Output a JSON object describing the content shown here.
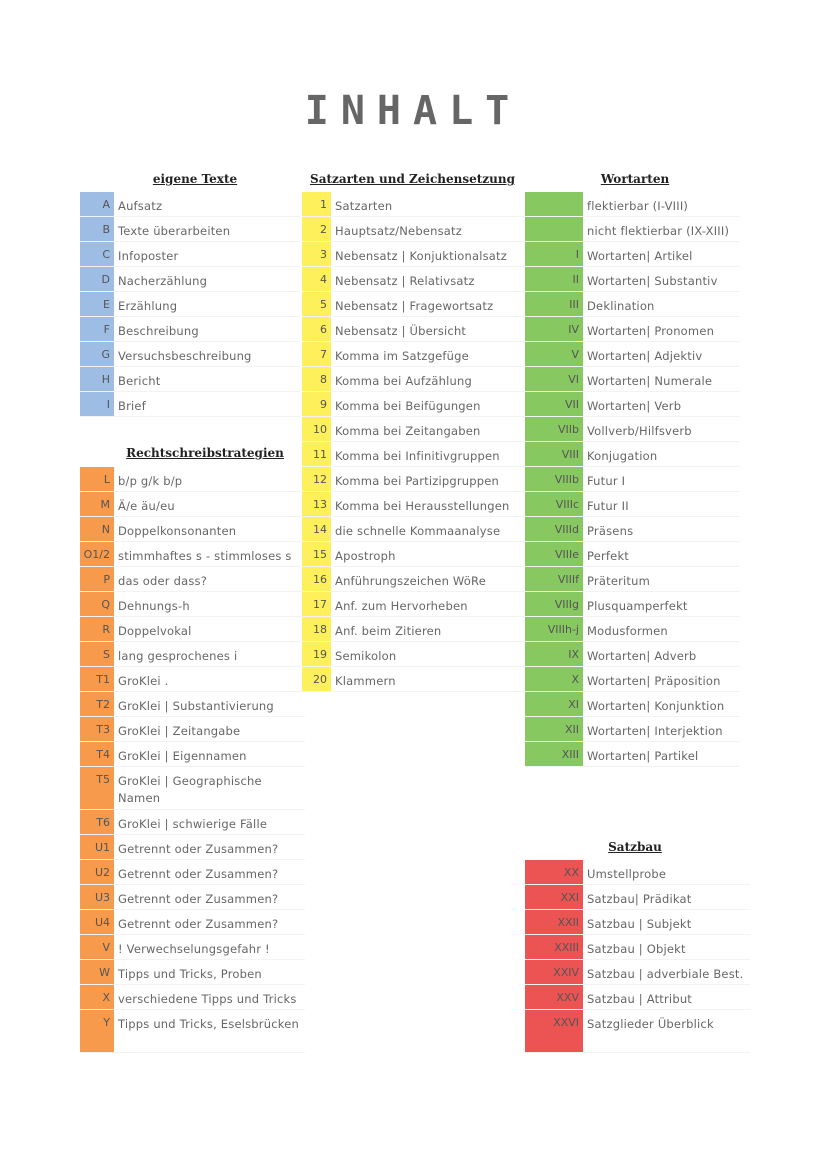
{
  "title": "INHALT",
  "sections": {
    "eigene_texte": {
      "heading": "eigene Texte",
      "items": [
        {
          "code": "A",
          "label": "Aufsatz"
        },
        {
          "code": "B",
          "label": "Texte überarbeiten"
        },
        {
          "code": "C",
          "label": "Infoposter"
        },
        {
          "code": "D",
          "label": "Nacherzählung"
        },
        {
          "code": "E",
          "label": "Erzählung"
        },
        {
          "code": "F",
          "label": "Beschreibung"
        },
        {
          "code": "G",
          "label": "Versuchsbeschreibung"
        },
        {
          "code": "H",
          "label": "Bericht"
        },
        {
          "code": "I",
          "label": "Brief"
        }
      ]
    },
    "rechtschreib": {
      "heading": "Rechtschreibstrategien",
      "items": [
        {
          "code": "L",
          "label": "b/p  g/k  b/p"
        },
        {
          "code": "M",
          "label": "Ä/e   äu/eu"
        },
        {
          "code": "N",
          "label": "Doppelkonsonanten"
        },
        {
          "code": "O1/2",
          "label": "stimmhaftes s - stimmloses s"
        },
        {
          "code": "P",
          "label": "das oder dass?"
        },
        {
          "code": "Q",
          "label": "Dehnungs-h"
        },
        {
          "code": "R",
          "label": "Doppelvokal"
        },
        {
          "code": "S",
          "label": "lang gesprochenes i"
        },
        {
          "code": "T1",
          "label": "GroKlei ."
        },
        {
          "code": "T2",
          "label": "GroKlei | Substantivierung"
        },
        {
          "code": "T3",
          "label": "GroKlei | Zeitangabe"
        },
        {
          "code": "T4",
          "label": "GroKlei | Eigennamen"
        },
        {
          "code": "T5",
          "label": "GroKlei | Geographische Namen"
        },
        {
          "code": "T6",
          "label": "GroKlei | schwierige Fälle"
        },
        {
          "code": "U1",
          "label": "Getrennt oder Zusammen?"
        },
        {
          "code": "U2",
          "label": "Getrennt oder Zusammen?"
        },
        {
          "code": "U3",
          "label": "Getrennt oder Zusammen?"
        },
        {
          "code": "U4",
          "label": "Getrennt oder Zusammen?"
        },
        {
          "code": "V",
          "label": "! Verwechselungsgefahr !"
        },
        {
          "code": "W",
          "label": "Tipps und Tricks, Proben"
        },
        {
          "code": "X",
          "label": "verschiedene Tipps und Tricks"
        },
        {
          "code": "Y",
          "label": "Tipps und Tricks, Eselsbrücken"
        }
      ]
    },
    "satzarten": {
      "heading": "Satzarten und Zeichensetzung",
      "items": [
        {
          "code": "1",
          "label": "Satzarten"
        },
        {
          "code": "2",
          "label": "Hauptsatz/Nebensatz"
        },
        {
          "code": "3",
          "label": "Nebensatz | Konjuktionalsatz"
        },
        {
          "code": "4",
          "label": "Nebensatz | Relativsatz"
        },
        {
          "code": "5",
          "label": "Nebensatz | Fragewortsatz"
        },
        {
          "code": "6",
          "label": "Nebensatz |  Übersicht"
        },
        {
          "code": "7",
          "label": "Komma im Satzgefüge"
        },
        {
          "code": "8",
          "label": "Komma bei Aufzählung"
        },
        {
          "code": "9",
          "label": "Komma bei Beifügungen"
        },
        {
          "code": "10",
          "label": "Komma bei Zeitangaben"
        },
        {
          "code": "11",
          "label": "Komma bei Infinitivgruppen"
        },
        {
          "code": "12",
          "label": "Komma bei Partizipgruppen"
        },
        {
          "code": "13",
          "label": "Komma bei Herausstellungen"
        },
        {
          "code": "14",
          "label": "die schnelle Kommaanalyse"
        },
        {
          "code": "15",
          "label": "Apostroph"
        },
        {
          "code": "16",
          "label": "Anführungszeichen WöRe"
        },
        {
          "code": "17",
          "label": "Anf. zum Hervorheben"
        },
        {
          "code": "18",
          "label": "Anf. beim Zitieren"
        },
        {
          "code": "19",
          "label": "Semikolon"
        },
        {
          "code": "20",
          "label": "Klammern"
        }
      ]
    },
    "wortarten": {
      "heading": "Wortarten",
      "items": [
        {
          "code": "",
          "label": "flektierbar (I-VIII)"
        },
        {
          "code": "",
          "label": "nicht flektierbar (IX-XIII)"
        },
        {
          "code": "I",
          "label": "Wortarten| Artikel"
        },
        {
          "code": "II",
          "label": "Wortarten| Substantiv"
        },
        {
          "code": "III",
          "label": "Deklination"
        },
        {
          "code": "IV",
          "label": "Wortarten| Pronomen"
        },
        {
          "code": "V",
          "label": "Wortarten| Adjektiv"
        },
        {
          "code": "VI",
          "label": "Wortarten| Numerale"
        },
        {
          "code": "VII",
          "label": "Wortarten| Verb"
        },
        {
          "code": "VIIb",
          "label": "Vollverb/Hilfsverb"
        },
        {
          "code": "VIII",
          "label": "Konjugation"
        },
        {
          "code": "VIIIb",
          "label": "Futur I"
        },
        {
          "code": "VIIIc",
          "label": "Futur II"
        },
        {
          "code": "VIIId",
          "label": "Präsens"
        },
        {
          "code": "VIIIe",
          "label": "Perfekt"
        },
        {
          "code": "VIIIf",
          "label": "Präteritum"
        },
        {
          "code": "VIIIg",
          "label": "Plusquamperfekt"
        },
        {
          "code": "VIIIh-j",
          "label": "Modusformen"
        },
        {
          "code": "IX",
          "label": "Wortarten| Adverb"
        },
        {
          "code": "X",
          "label": "Wortarten| Präposition"
        },
        {
          "code": "XI",
          "label": "Wortarten| Konjunktion"
        },
        {
          "code": "XII",
          "label": "Wortarten| Interjektion"
        },
        {
          "code": "XIII",
          "label": "Wortarten| Partikel"
        }
      ]
    },
    "satzbau": {
      "heading": "Satzbau",
      "items": [
        {
          "code": "XX",
          "label": "Umstellprobe"
        },
        {
          "code": "XXI",
          "label": "Satzbau| Prädikat"
        },
        {
          "code": "XXII",
          "label": "Satzbau | Subjekt"
        },
        {
          "code": "XXIII",
          "label": "Satzbau | Objekt"
        },
        {
          "code": "XXIV",
          "label": "Satzbau | adverbiale Best."
        },
        {
          "code": "XXV",
          "label": "Satzbau | Attribut"
        },
        {
          "code": "XXVI",
          "label": "Satzglieder Überblick"
        }
      ]
    }
  },
  "colors": {
    "blue": "#9ebde4",
    "orange": "#f79a4c",
    "yellow": "#fef05a",
    "green": "#88c860",
    "red": "#ec5353"
  }
}
